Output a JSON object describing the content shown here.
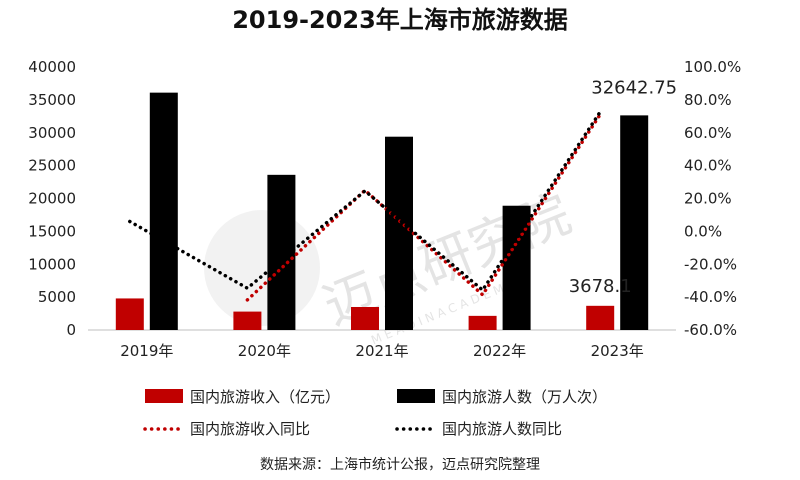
{
  "chart_data": {
    "type": "bar",
    "title": "2019-2023年上海市旅游数据",
    "categories": [
      "2019年",
      "2020年",
      "2021年",
      "2022年",
      "2023年"
    ],
    "series": [
      {
        "name": "国内旅游收入（亿元）",
        "type": "bar",
        "axis": "left",
        "color": "#c00000",
        "values": [
          4800,
          2800,
          3500,
          2150,
          3678.1
        ]
      },
      {
        "name": "国内旅游人数（万人次）",
        "type": "bar",
        "axis": "left",
        "color": "#000000",
        "values": [
          36100,
          23600,
          29400,
          18900,
          32642.75
        ]
      },
      {
        "name": "国内旅游收入同比",
        "type": "line",
        "axis": "right",
        "color": "#c00000",
        "style": "dotted",
        "values": [
          null,
          -41.7,
          25.0,
          -38.6,
          71.1
        ]
      },
      {
        "name": "国内旅游人数同比",
        "type": "line",
        "axis": "right",
        "color": "#000000",
        "style": "dotted",
        "values": [
          6.0,
          -34.6,
          24.6,
          -35.7,
          72.7
        ]
      }
    ],
    "y_left": {
      "min": 0,
      "max": 40000,
      "ticks": [
        "0",
        "5000",
        "10000",
        "15000",
        "20000",
        "25000",
        "30000",
        "35000",
        "40000"
      ]
    },
    "y_right": {
      "min": -60,
      "max": 100,
      "ticks": [
        "-60.0%",
        "-40.0%",
        "-20.0%",
        "0.0%",
        "20.0%",
        "40.0%",
        "60.0%",
        "80.0%",
        "100.0%"
      ]
    },
    "data_labels": [
      {
        "series": 1,
        "index": 4,
        "text": "32642.75"
      },
      {
        "series": 0,
        "index": 4,
        "text": "3678.1"
      }
    ],
    "legend": {
      "placement": "bottom"
    },
    "grid": false
  },
  "source_note": "数据来源：上海市统计公报，迈点研究院整理",
  "watermark": {
    "text": "迈点研究院",
    "subtext": "M E A D I N   A C A D E M Y"
  }
}
